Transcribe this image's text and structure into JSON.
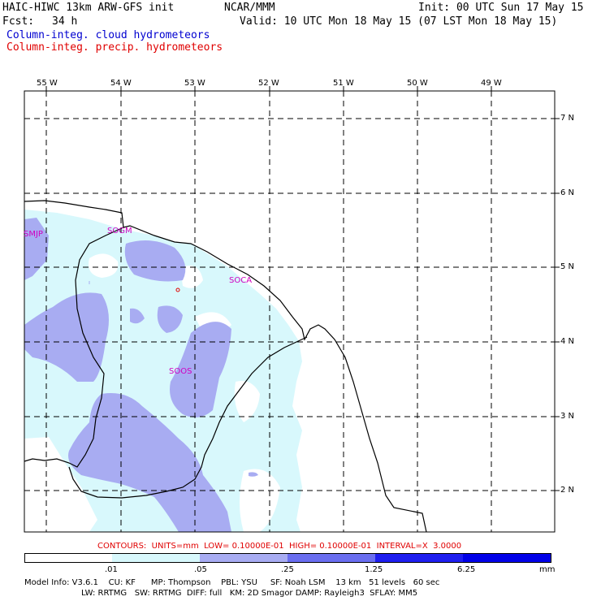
{
  "header": {
    "model_title": "HAIC-HIWC 13km ARW-GFS init",
    "org": "NCAR/MMM",
    "init": "Init: 00 UTC Sun 17 May 15",
    "fcst_label": "Fcst:",
    "fcst_value": "34 h",
    "valid": "Valid: 10 UTC Mon 18 May 15 (07 LST Mon 18 May 15)",
    "field1": "Column-integ. cloud hydrometeors",
    "field2": "Column-integ. precip. hydrometeors"
  },
  "map": {
    "lon_labels": [
      "55 W",
      "54 W",
      "53 W",
      "52 W",
      "51 W",
      "50 W",
      "49 W"
    ],
    "lat_labels": [
      "7 N",
      "6 N",
      "5 N",
      "4 N",
      "3 N",
      "2 N"
    ],
    "stations": [
      {
        "id": "SMJP"
      },
      {
        "id": "SOGM"
      },
      {
        "id": "SOCA"
      },
      {
        "id": "SOOS"
      }
    ]
  },
  "contours_text": "CONTOURS:  UNITS=mm  LOW= 0.10000E-01  HIGH= 0.10000E-01  INTERVAL=X  3.0000",
  "legend": {
    "labels": [
      ".01",
      ".05",
      ".25",
      "1.25",
      "6.25"
    ],
    "unit": "mm",
    "colors": [
      "#ffffff",
      "#d8f8fc",
      "#a8acf2",
      "#6a6ef0",
      "#1e1ef0",
      "#0000e8"
    ]
  },
  "footer": {
    "line1": "Model Info: V3.6.1    CU: KF      MP: Thompson    PBL: YSU     SF: Noah LSM    13 km   51 levels   60 sec",
    "line2": "LW: RRTMG   SW: RRTMG  DIFF: full   KM: 2D Smagor DAMP: Rayleigh3  SFLAY: MM5"
  }
}
